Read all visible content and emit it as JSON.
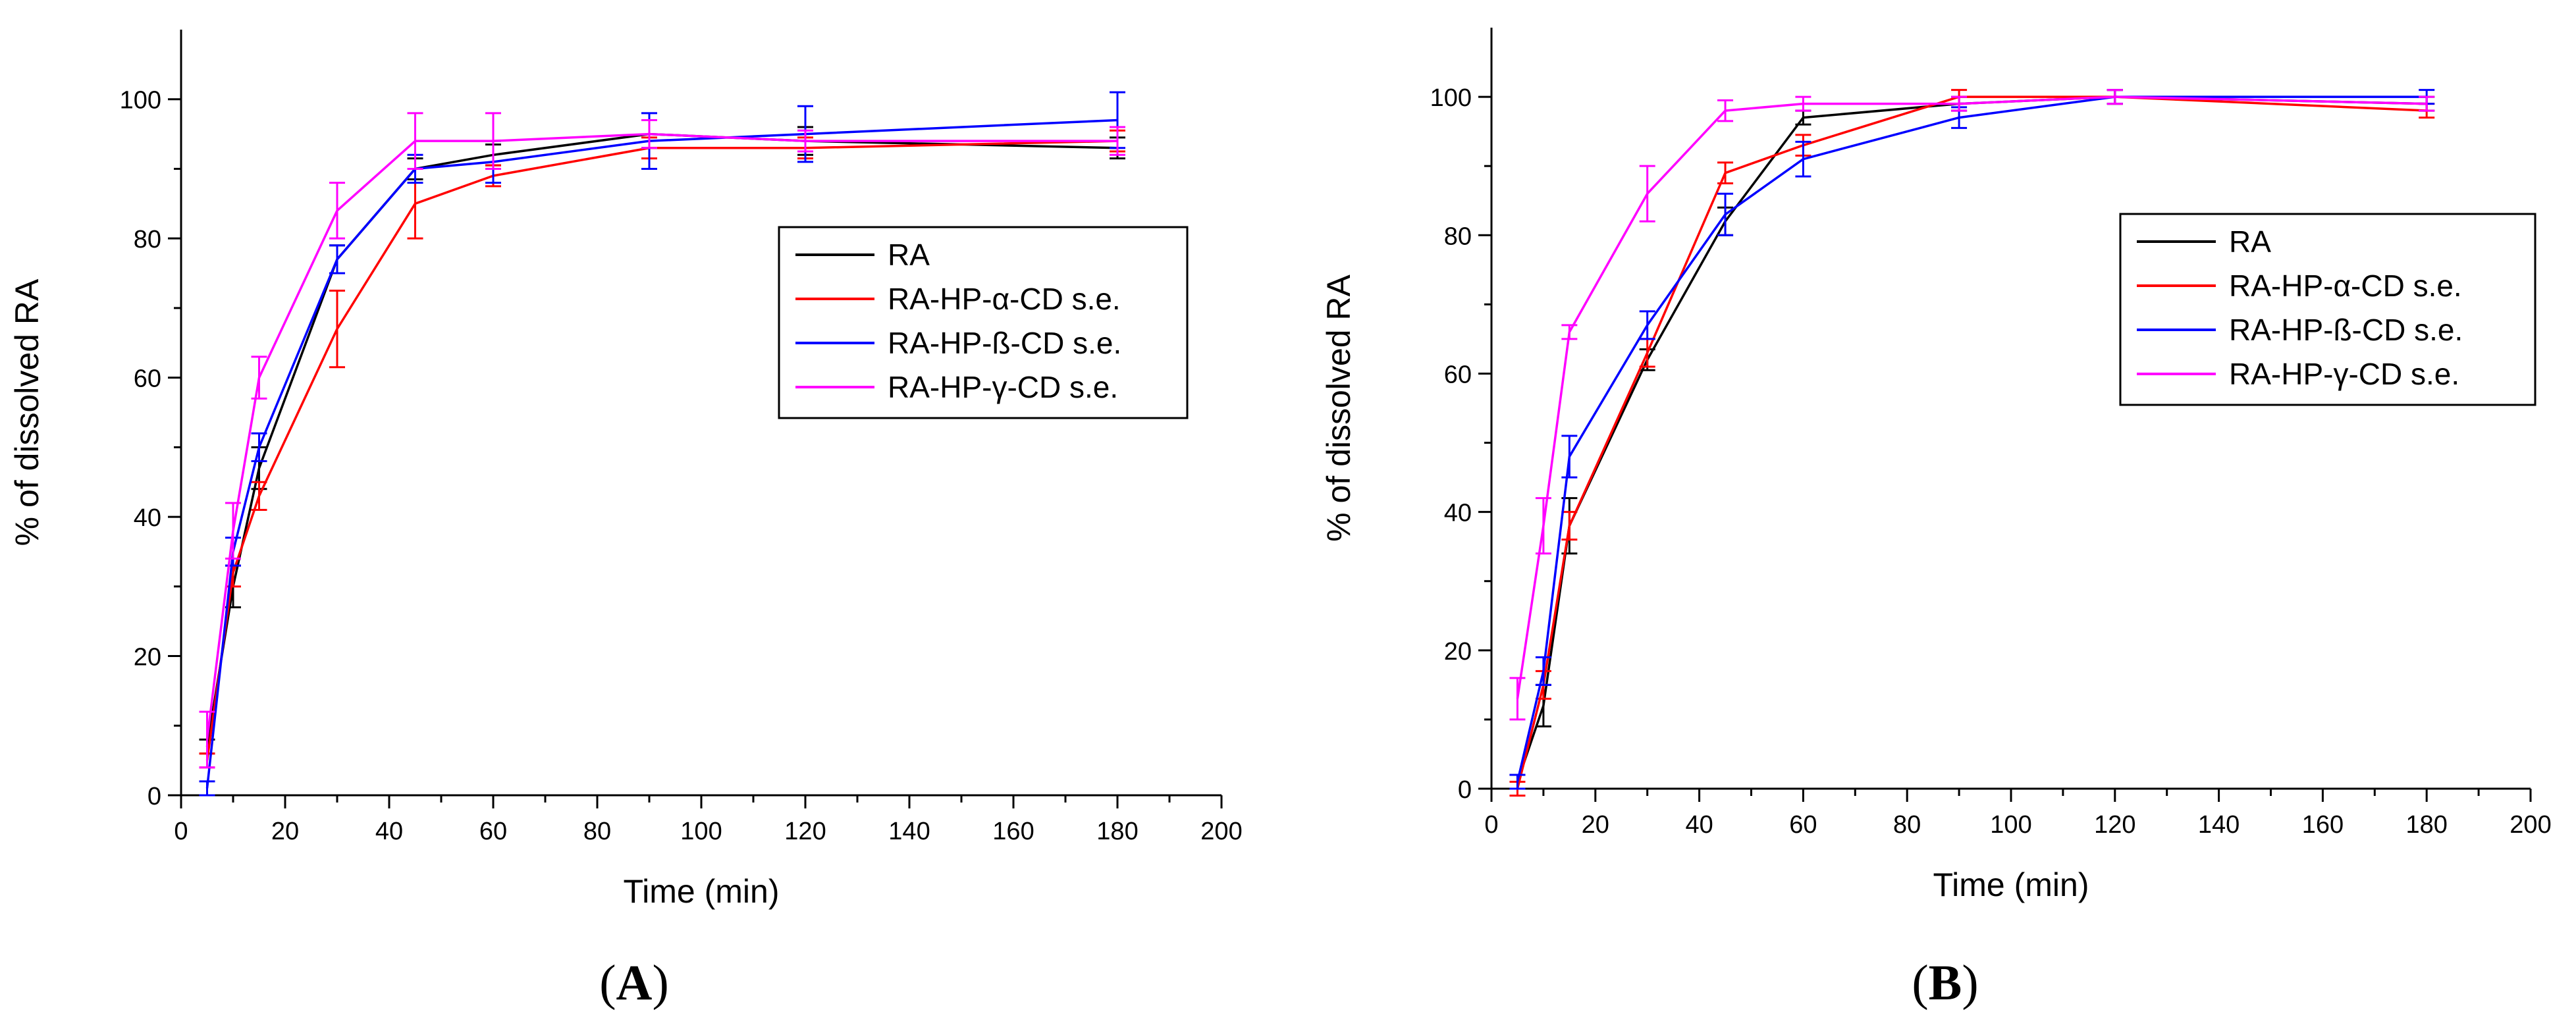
{
  "chart_data": [
    {
      "type": "line",
      "panel_label": "A",
      "xlabel": "Time (min)",
      "ylabel": "% of dissolved  RA",
      "xlim": [
        0,
        200
      ],
      "ylim": [
        0,
        110
      ],
      "xticks": [
        0,
        20,
        40,
        60,
        80,
        100,
        120,
        140,
        160,
        180,
        200
      ],
      "yticks": [
        0,
        20,
        40,
        60,
        80,
        100
      ],
      "x": [
        5,
        10,
        15,
        30,
        45,
        60,
        90,
        120,
        180
      ],
      "legend_position": "center-right",
      "series": [
        {
          "name": "RA",
          "color": "#000000",
          "values": [
            7,
            30,
            47,
            77,
            90,
            92,
            95,
            94,
            93
          ],
          "errors": [
            1,
            3,
            3,
            2,
            1.5,
            1.5,
            2,
            2,
            1.5
          ]
        },
        {
          "name": "RA-HP-α-CD s.e.",
          "color": "#ff0000",
          "values": [
            5,
            32,
            43,
            67,
            85,
            89,
            93,
            93,
            94
          ],
          "errors": [
            1,
            2,
            2,
            5.5,
            5,
            1.5,
            1.5,
            1.5,
            1.5
          ]
        },
        {
          "name": "RA-HP-ß-CD s.e.",
          "color": "#0000ff",
          "values": [
            1,
            35,
            50,
            77,
            90,
            91,
            94,
            95,
            97
          ],
          "errors": [
            1,
            2,
            2,
            2,
            2,
            3,
            4,
            4,
            4
          ]
        },
        {
          "name": "RA-HP-γ-CD s.e.",
          "color": "#ff00ff",
          "values": [
            8,
            38,
            60,
            84,
            94,
            94,
            95,
            94,
            94
          ],
          "errors": [
            4,
            4,
            3,
            4,
            4,
            4,
            2,
            1.5,
            2
          ]
        }
      ]
    },
    {
      "type": "line",
      "panel_label": "B",
      "xlabel": "Time (min)",
      "ylabel": "% of dissolved  RA",
      "xlim": [
        0,
        200
      ],
      "ylim": [
        0,
        110
      ],
      "xticks": [
        0,
        20,
        40,
        60,
        80,
        100,
        120,
        140,
        160,
        180,
        200
      ],
      "yticks": [
        0,
        20,
        40,
        60,
        80,
        100
      ],
      "x": [
        5,
        10,
        15,
        30,
        45,
        60,
        90,
        120,
        180
      ],
      "legend_position": "center-right",
      "series": [
        {
          "name": "RA",
          "color": "#000000",
          "values": [
            1,
            12,
            38,
            62,
            82,
            97,
            99,
            100,
            99
          ],
          "errors": [
            1,
            3,
            4,
            1.5,
            2,
            1,
            1,
            1,
            1
          ]
        },
        {
          "name": "RA-HP-α-CD s.e.",
          "color": "#ff0000",
          "values": [
            0,
            15,
            38,
            63,
            89,
            93,
            100,
            100,
            98
          ],
          "errors": [
            1,
            2,
            2,
            2,
            1.5,
            1.5,
            1,
            1,
            1
          ]
        },
        {
          "name": "RA-HP-ß-CD s.e.",
          "color": "#0000ff",
          "values": [
            1,
            17,
            48,
            67,
            83,
            91,
            97,
            100,
            100
          ],
          "errors": [
            1,
            2,
            3,
            2,
            3,
            2.5,
            1.5,
            1,
            1
          ]
        },
        {
          "name": "RA-HP-γ-CD s.e.",
          "color": "#ff00ff",
          "values": [
            13,
            38,
            66,
            86,
            98,
            99,
            99,
            100,
            99
          ],
          "errors": [
            3,
            4,
            1,
            4,
            1.5,
            1,
            1,
            1,
            1
          ]
        }
      ]
    }
  ]
}
